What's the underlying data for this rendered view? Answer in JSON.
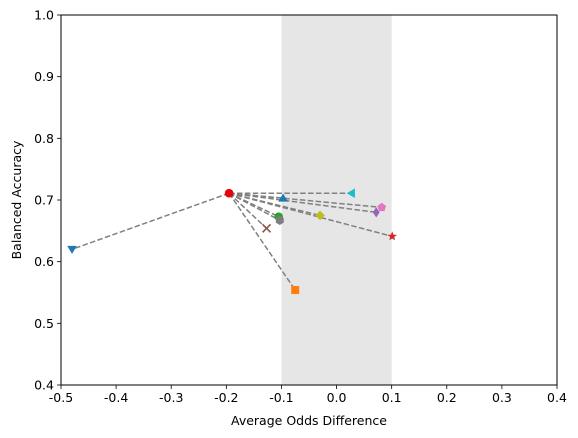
{
  "chart_data": {
    "type": "scatter",
    "title": "",
    "xlabel": "Average Odds Difference",
    "ylabel": "Balanced Accuracy",
    "xlim": [
      -0.5,
      0.4
    ],
    "ylim": [
      0.4,
      1.0
    ],
    "xticks": [
      "-0.5",
      "-0.4",
      "-0.3",
      "-0.2",
      "-0.1",
      "0.0",
      "0.1",
      "0.2",
      "0.3",
      "0.4"
    ],
    "yticks": [
      "0.4",
      "0.5",
      "0.6",
      "0.7",
      "0.8",
      "0.9",
      "1.0"
    ],
    "grid": false,
    "fair_region": {
      "x": [
        -0.1,
        0.1
      ],
      "color": "#e6e6e6"
    },
    "connector_color": "#808080",
    "origin": {
      "x": -0.195,
      "y": 0.711,
      "marker": "circle",
      "color": "#e8000b"
    },
    "points": [
      {
        "x": -0.48,
        "y": 0.62,
        "marker": "triangle-down",
        "color": "#1f77b4"
      },
      {
        "x": -0.075,
        "y": 0.554,
        "marker": "square",
        "color": "#ff7f0e"
      },
      {
        "x": -0.105,
        "y": 0.673,
        "marker": "circle",
        "color": "#2ca02c"
      },
      {
        "x": 0.101,
        "y": 0.641,
        "marker": "star",
        "color": "#d62728"
      },
      {
        "x": 0.072,
        "y": 0.68,
        "marker": "thin-diamond",
        "color": "#9467bd"
      },
      {
        "x": -0.127,
        "y": 0.654,
        "marker": "x",
        "color": "#8c564b"
      },
      {
        "x": 0.082,
        "y": 0.688,
        "marker": "pentagon",
        "color": "#e377c2"
      },
      {
        "x": -0.103,
        "y": 0.667,
        "marker": "hexagon",
        "color": "#7f7f7f"
      },
      {
        "x": -0.03,
        "y": 0.675,
        "marker": "diamond",
        "color": "#bcbd22"
      },
      {
        "x": 0.027,
        "y": 0.711,
        "marker": "triangle-left",
        "color": "#17becf"
      },
      {
        "x": -0.097,
        "y": 0.703,
        "marker": "triangle-up",
        "color": "#1f77b4"
      }
    ]
  }
}
